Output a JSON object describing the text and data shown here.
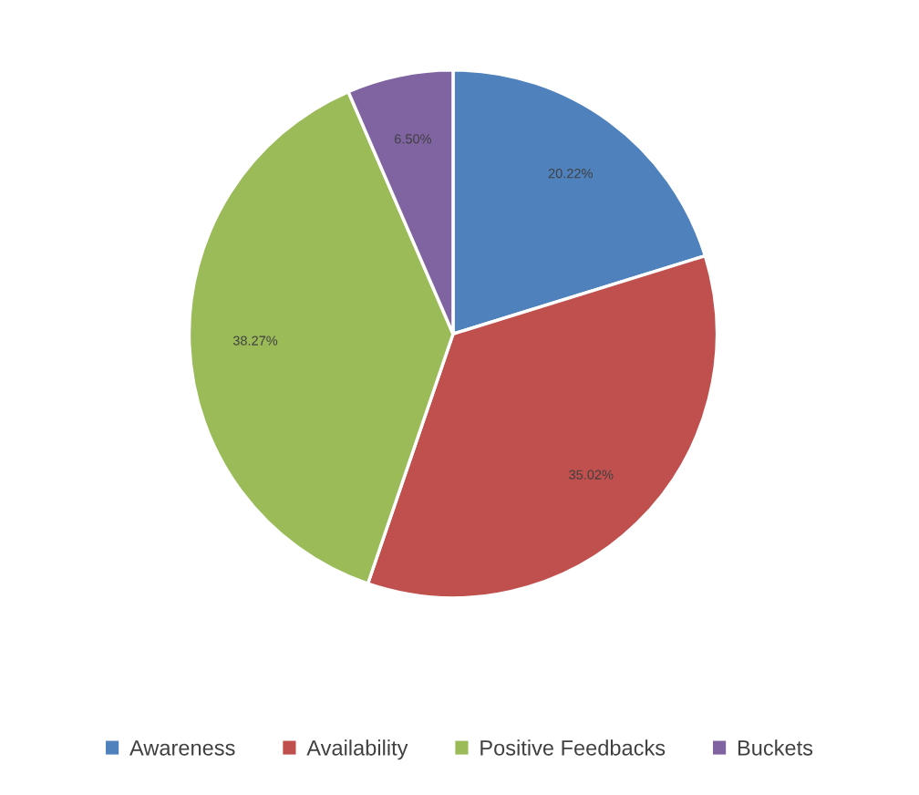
{
  "chart_data": {
    "type": "pie",
    "categories": [
      "Awareness",
      "Availability",
      "Positive Feedbacks",
      "Buckets"
    ],
    "values": [
      20.22,
      35.02,
      38.27,
      6.5
    ],
    "colors": [
      "#4f81bd",
      "#c0504d",
      "#9bbb59",
      "#8064a2"
    ],
    "value_labels": [
      "20.22%",
      "35.02%",
      "38.27%",
      "6.50%"
    ],
    "legend": "bottom"
  }
}
